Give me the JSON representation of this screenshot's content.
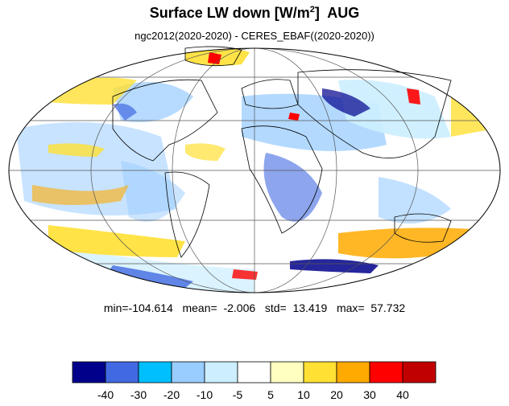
{
  "title": {
    "main": "Surface LW down [W/m",
    "sup": "2",
    "tail": "]  AUG"
  },
  "subtitle": "ngc2012(2020-2020) - CERES_EBAF((2020-2020))",
  "stats": "min=-104.614   mean=  -2.006   std=  13.419   max=  57.732",
  "colorbar": {
    "colors": [
      "#00008b",
      "#4169e1",
      "#00bfff",
      "#99ccff",
      "#cceeff",
      "#ffffff",
      "#ffffc0",
      "#ffe033",
      "#ffaa00",
      "#ff0000",
      "#c00000"
    ],
    "labels": [
      "-40",
      "-30",
      "-20",
      "-10",
      "-5",
      "5",
      "10",
      "20",
      "30",
      "40"
    ]
  }
}
